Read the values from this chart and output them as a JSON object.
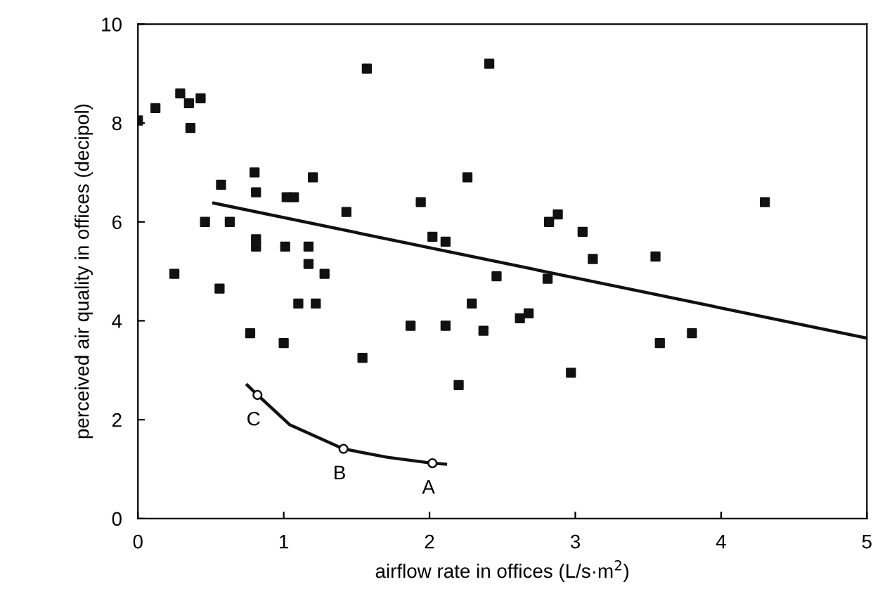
{
  "chart_data": {
    "type": "scatter",
    "xlabel": "airflow rate in offices (L/s·m$^{2}$)",
    "ylabel": "perceived air quality in offices (decipol)",
    "xlim": [
      0,
      5
    ],
    "ylim": [
      0,
      10
    ],
    "xticks": [
      0,
      1,
      2,
      3,
      4,
      5
    ],
    "yticks": [
      0,
      2,
      4,
      6,
      8,
      10
    ],
    "grid": false,
    "legend": false,
    "series": [
      {
        "color": "#111111",
        "marker": "square",
        "x": [
          0,
          0.12,
          0.29,
          0.35,
          0.43,
          0.36,
          0.57,
          0.8,
          0.81,
          1.02,
          1.07,
          1.2,
          1.43,
          0.46,
          0.63,
          0.81,
          0.81,
          1.01,
          1.17,
          1.17,
          1.28,
          0.25,
          0.56,
          1.1,
          1.22,
          1.57,
          2.41,
          2.26,
          1.94,
          2.02,
          2.11,
          2.46,
          2.29,
          0.77,
          1.0,
          1.54,
          1.87,
          2.11,
          2.37,
          2.2,
          4.3,
          2.82,
          2.88,
          3.05,
          3.12,
          3.55,
          2.81,
          2.62,
          2.68,
          2.97,
          3.58,
          3.8
        ],
        "values": [
          8.05,
          8.3,
          8.6,
          8.4,
          8.5,
          7.9,
          6.75,
          7.0,
          6.6,
          6.5,
          6.5,
          6.9,
          6.2,
          6.0,
          6.0,
          5.65,
          5.5,
          5.5,
          5.5,
          5.15,
          4.95,
          4.95,
          4.65,
          4.35,
          4.35,
          9.1,
          9.2,
          6.9,
          6.4,
          5.7,
          5.6,
          4.9,
          4.35,
          3.75,
          3.55,
          3.25,
          3.9,
          3.9,
          3.8,
          2.7,
          6.4,
          6.0,
          6.15,
          5.8,
          5.25,
          5.3,
          4.85,
          4.05,
          4.15,
          2.95,
          3.55,
          3.75
        ]
      },
      {
        "type": "line",
        "color": "#111111",
        "marker": "none",
        "x": [
          0.52,
          5
        ],
        "values": [
          6.38,
          3.65
        ]
      },
      {
        "type": "line",
        "color": "#111111",
        "marker": "none",
        "x": [
          0.75,
          0.82,
          1.04,
          1.41,
          1.71,
          2.02,
          2.11
        ],
        "values": [
          2.7,
          2.5,
          1.9,
          1.41,
          1.24,
          1.12,
          1.1
        ]
      },
      {
        "type": "scatter",
        "color": "#111111",
        "marker": "circle",
        "x": [
          2.02,
          1.41,
          0.82
        ],
        "values": [
          1.12,
          1.41,
          2.5
        ]
      }
    ],
    "annotations": [
      {
        "text": "A",
        "x": 2.02,
        "y": 1.12
      },
      {
        "text": "B",
        "x": 1.41,
        "y": 1.41
      },
      {
        "text": "C",
        "x": 0.82,
        "y": 2.5
      }
    ]
  }
}
